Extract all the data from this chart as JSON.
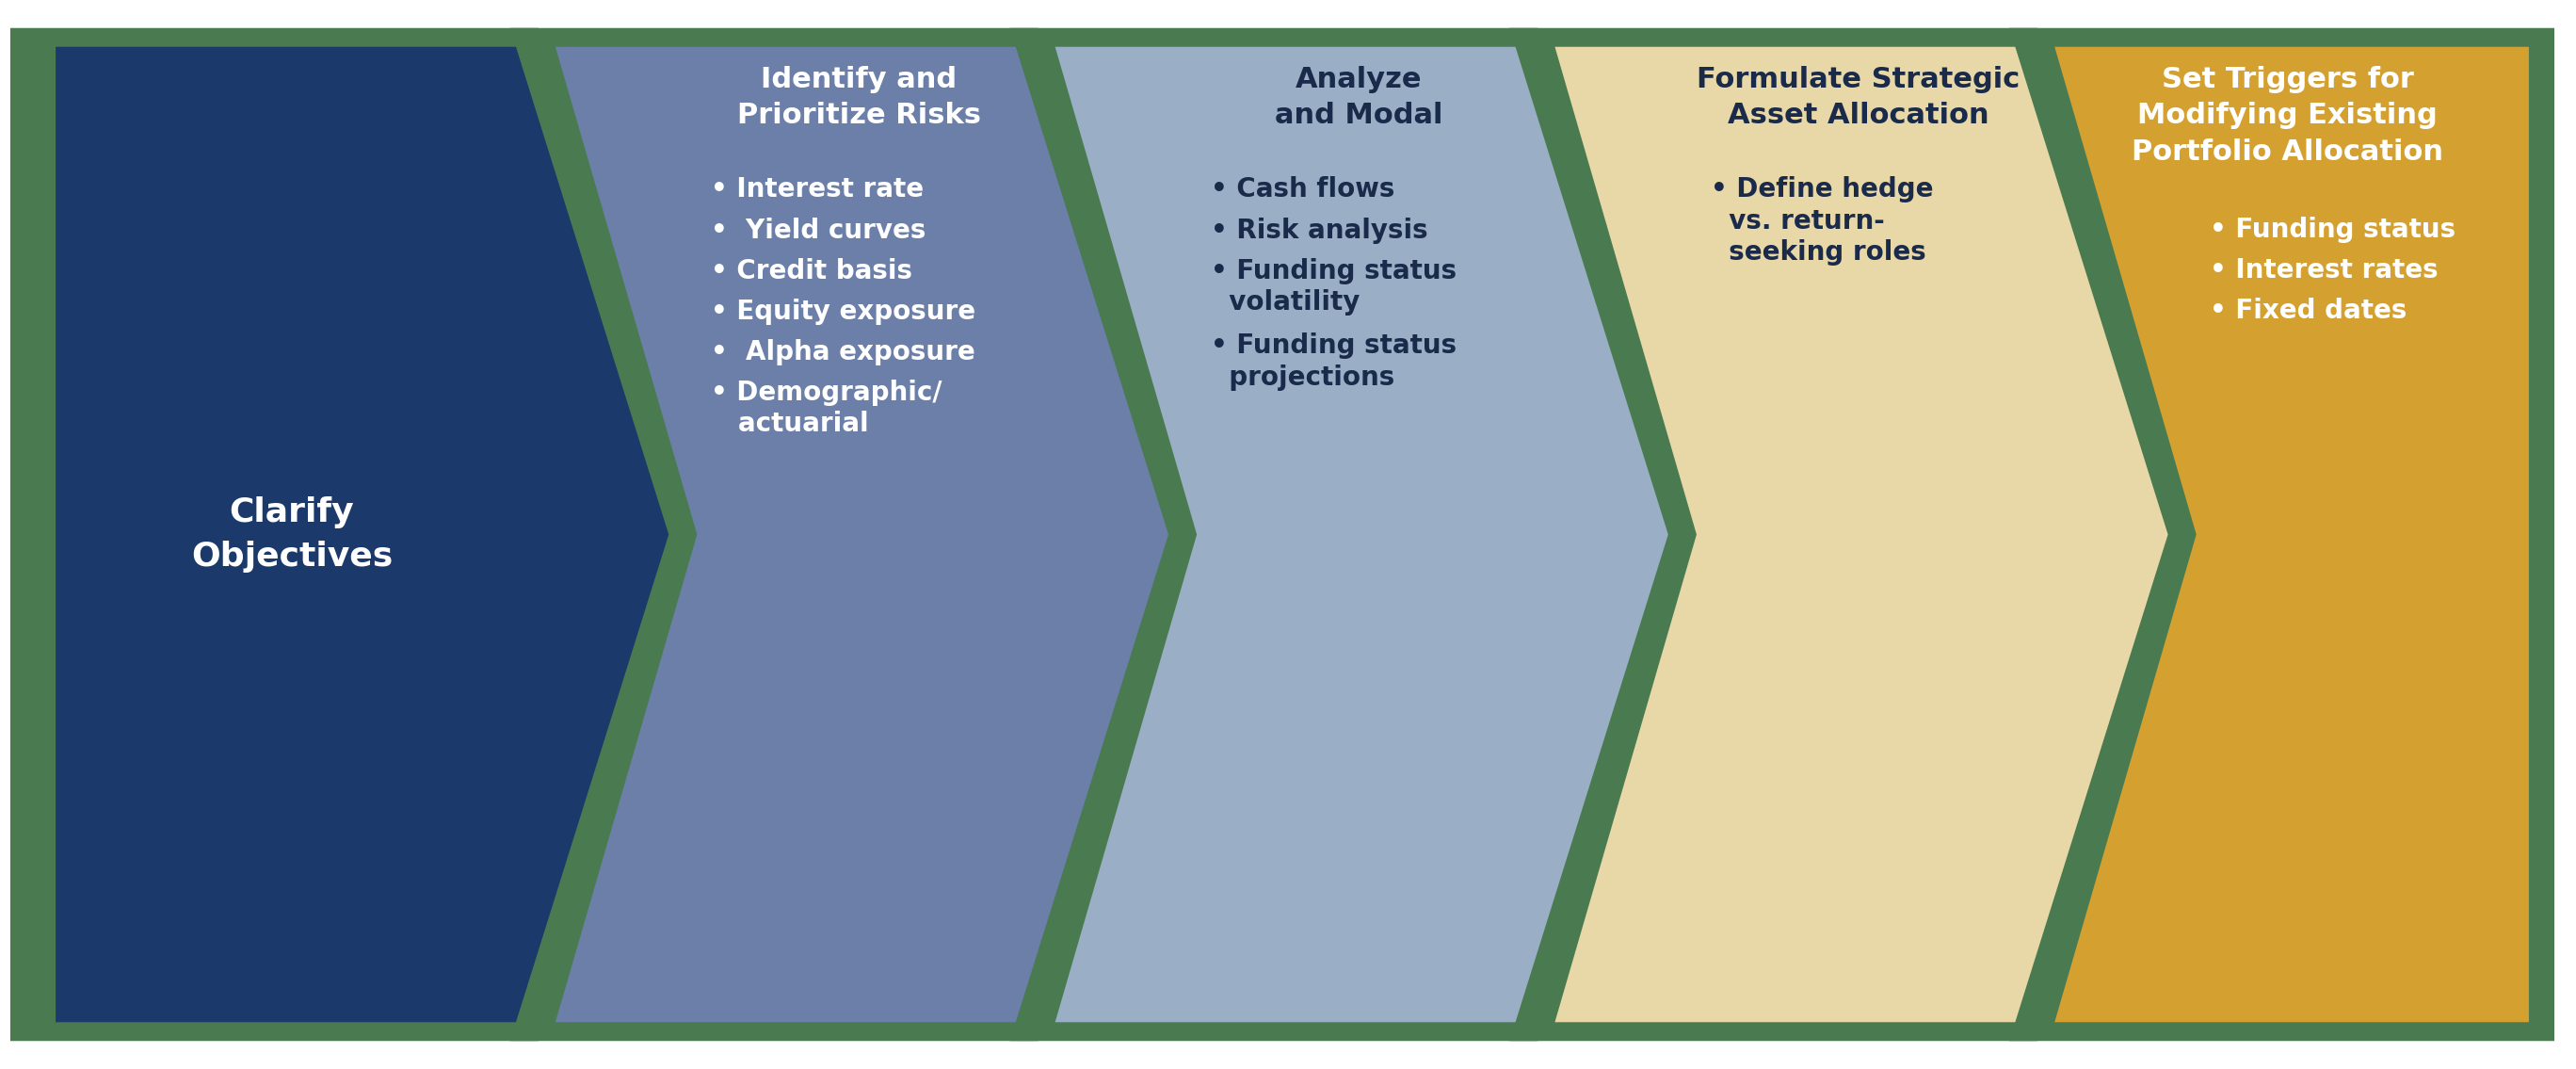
{
  "bg_color": "#ffffff",
  "figure_width": 27.36,
  "figure_height": 11.35,
  "border_color": "#4a7a50",
  "steps": [
    {
      "title": "Clarify\nObjectives",
      "bullets": [],
      "title_fontsize": 26,
      "bullet_fontsize": 20,
      "text_color": "#ffffff",
      "arrow_color": "#1b3a6b"
    },
    {
      "title": "Identify and\nPrioritize Risks",
      "bullets": [
        "• Interest rate",
        "•  Yield curves",
        "• Credit basis",
        "• Equity exposure",
        "•  Alpha exposure",
        "• Demographic/\n   actuarial"
      ],
      "title_fontsize": 22,
      "bullet_fontsize": 20,
      "text_color": "#ffffff",
      "arrow_color": "#6b7fa8"
    },
    {
      "title": "Analyze\nand Modal",
      "bullets": [
        "• Cash flows",
        "• Risk analysis",
        "• Funding status\n  volatility",
        "• Funding status\n  projections"
      ],
      "title_fontsize": 22,
      "bullet_fontsize": 20,
      "text_color": "#1a2a4a",
      "arrow_color": "#9aafc5"
    },
    {
      "title": "Formulate Strategic\nAsset Allocation",
      "bullets": [
        "• Define hedge\n  vs. return-\n  seeking roles"
      ],
      "title_fontsize": 22,
      "bullet_fontsize": 20,
      "text_color": "#1a2a4a",
      "arrow_color": "#e8d8a8"
    },
    {
      "title": "Set Triggers for\nModifying Existing\nPortfolio Allocation",
      "bullets": [
        "• Funding status",
        "• Interest rates",
        "• Fixed dates"
      ],
      "title_fontsize": 22,
      "bullet_fontsize": 20,
      "text_color": "#ffffff",
      "arrow_color": "#d4a030"
    }
  ]
}
